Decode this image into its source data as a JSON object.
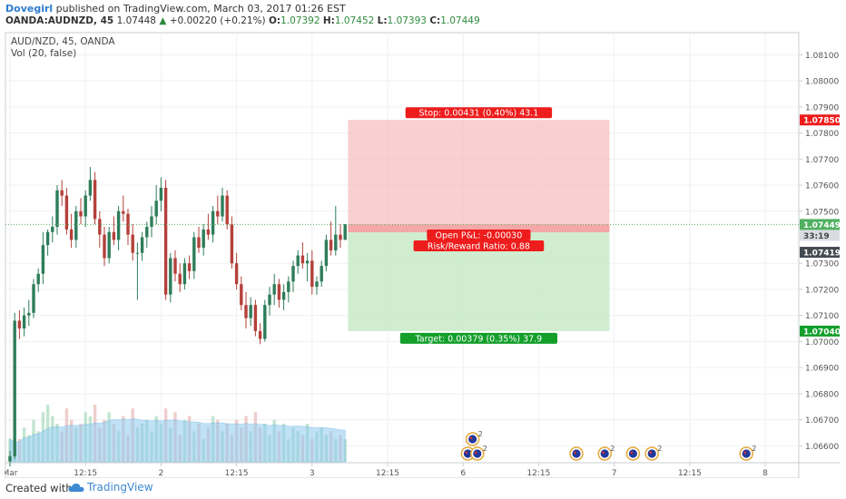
{
  "header": {
    "author": "Dovegirl",
    "published_text": "published on TradingView.com, March 03, 2017 01:26 EST",
    "symbol": "OANDA:AUDNZD, 45",
    "last": "1.07448",
    "change": "+0.00220 (+0.21%)",
    "ohlc": [
      {
        "key": "O:",
        "value": "1.07392"
      },
      {
        "key": "H:",
        "value": "1.07452"
      },
      {
        "key": "L:",
        "value": "1.07393"
      },
      {
        "key": "C:",
        "value": "1.07449"
      }
    ]
  },
  "legend": {
    "title": "AUD/NZD, 45, OANDA",
    "indicator": "Vol (20, false)"
  },
  "footer": {
    "created_with": "Created with",
    "brand": "TradingView"
  },
  "colors": {
    "up": "#2e7d5a",
    "down": "#b5403a",
    "volume_ma": "#8fcbf0",
    "stop_zone": "#f8bfbf",
    "target_zone": "#c8eac8",
    "stop_label": "#ee1c1c",
    "target_label": "#139f2a",
    "last_price_label": "#4fb060"
  },
  "chart_data": {
    "type": "candlestick",
    "ylim": [
      1.06535,
      1.08185
    ],
    "y_ticks": [
      "1.08100",
      "1.08000",
      "1.07900",
      "1.07800",
      "1.07700",
      "1.07600",
      "1.07500",
      "1.07300",
      "1.07200",
      "1.07100",
      "1.07000",
      "1.06900",
      "1.06800",
      "1.06700",
      "1.06600"
    ],
    "y_tick_values": [
      1.081,
      1.08,
      1.079,
      1.078,
      1.077,
      1.076,
      1.075,
      1.073,
      1.072,
      1.071,
      1.07,
      1.069,
      1.068,
      1.067,
      1.066
    ],
    "x_ticks": [
      "Mar",
      "12:15",
      "2",
      "12:15",
      "3",
      "12:15",
      "6",
      "12:15",
      "7",
      "12:15",
      "8"
    ],
    "x_tick_bars": [
      0,
      16,
      32,
      48,
      64,
      80,
      96,
      112,
      128,
      144,
      160
    ],
    "ohlc": [
      [
        1.0654,
        1.0658,
        1.0652,
        1.0656
      ],
      [
        1.0656,
        1.0711,
        1.0655,
        1.0708
      ],
      [
        1.0708,
        1.0712,
        1.0701,
        1.0705
      ],
      [
        1.0705,
        1.0713,
        1.0702,
        1.071
      ],
      [
        1.071,
        1.0716,
        1.0706,
        1.0711
      ],
      [
        1.0711,
        1.0724,
        1.0709,
        1.0722
      ],
      [
        1.0722,
        1.0728,
        1.0719,
        1.0726
      ],
      [
        1.0726,
        1.0742,
        1.0722,
        1.0737
      ],
      [
        1.0737,
        1.0743,
        1.0733,
        1.0742
      ],
      [
        1.0742,
        1.0748,
        1.0738,
        1.0744
      ],
      [
        1.0744,
        1.076,
        1.0741,
        1.0758
      ],
      [
        1.0758,
        1.0762,
        1.0752,
        1.0756
      ],
      [
        1.0756,
        1.0759,
        1.0741,
        1.0743
      ],
      [
        1.0743,
        1.0749,
        1.0736,
        1.0739
      ],
      [
        1.0739,
        1.0752,
        1.0736,
        1.075
      ],
      [
        1.075,
        1.0755,
        1.0745,
        1.0748
      ],
      [
        1.0748,
        1.0758,
        1.0744,
        1.0756
      ],
      [
        1.0756,
        1.0767,
        1.0754,
        1.0762
      ],
      [
        1.0762,
        1.0765,
        1.0745,
        1.0747
      ],
      [
        1.0747,
        1.075,
        1.0736,
        1.0741
      ],
      [
        1.0741,
        1.0744,
        1.0729,
        1.0732
      ],
      [
        1.0732,
        1.0744,
        1.073,
        1.0742
      ],
      [
        1.0742,
        1.0748,
        1.0737,
        1.0739
      ],
      [
        1.0739,
        1.0752,
        1.0735,
        1.075
      ],
      [
        1.075,
        1.0756,
        1.0746,
        1.0749
      ],
      [
        1.0749,
        1.0751,
        1.0737,
        1.0741
      ],
      [
        1.0741,
        1.0745,
        1.0731,
        1.0734
      ],
      [
        1.0734,
        1.0738,
        1.0716,
        1.0734
      ],
      [
        1.0734,
        1.0742,
        1.0731,
        1.074
      ],
      [
        1.074,
        1.0746,
        1.0736,
        1.0744
      ],
      [
        1.0744,
        1.0752,
        1.074,
        1.0748
      ],
      [
        1.0748,
        1.076,
        1.0745,
        1.0754
      ],
      [
        1.0754,
        1.0763,
        1.075,
        1.0759
      ],
      [
        1.0759,
        1.0762,
        1.0716,
        1.0718
      ],
      [
        1.0718,
        1.0734,
        1.0715,
        1.0732
      ],
      [
        1.0732,
        1.0735,
        1.0723,
        1.0726
      ],
      [
        1.0726,
        1.073,
        1.0719,
        1.0722
      ],
      [
        1.0722,
        1.0732,
        1.072,
        1.073
      ],
      [
        1.073,
        1.0733,
        1.0724,
        1.0727
      ],
      [
        1.0727,
        1.0742,
        1.0724,
        1.074
      ],
      [
        1.074,
        1.0744,
        1.0734,
        1.0736
      ],
      [
        1.0736,
        1.0745,
        1.0733,
        1.0743
      ],
      [
        1.0743,
        1.0749,
        1.0739,
        1.0741
      ],
      [
        1.0741,
        1.0752,
        1.0738,
        1.075
      ],
      [
        1.075,
        1.0756,
        1.0745,
        1.0748
      ],
      [
        1.0748,
        1.0759,
        1.0746,
        1.0756
      ],
      [
        1.0756,
        1.0758,
        1.0743,
        1.0745
      ],
      [
        1.0745,
        1.0748,
        1.0728,
        1.073
      ],
      [
        1.073,
        1.0734,
        1.072,
        1.0722
      ],
      [
        1.0722,
        1.0725,
        1.0712,
        1.0714
      ],
      [
        1.0714,
        1.0719,
        1.0705,
        1.0709
      ],
      [
        1.0709,
        1.0717,
        1.0706,
        1.0714
      ],
      [
        1.0714,
        1.0716,
        1.0702,
        1.0704
      ],
      [
        1.0704,
        1.0707,
        1.0699,
        1.0701
      ],
      [
        1.0701,
        1.0716,
        1.07,
        1.0714
      ],
      [
        1.0714,
        1.0721,
        1.071,
        1.0718
      ],
      [
        1.0718,
        1.0726,
        1.0714,
        1.0722
      ],
      [
        1.0722,
        1.0724,
        1.0713,
        1.0716
      ],
      [
        1.0716,
        1.0722,
        1.0712,
        1.0719
      ],
      [
        1.0719,
        1.0725,
        1.0715,
        1.0723
      ],
      [
        1.0723,
        1.0731,
        1.0719,
        1.0729
      ],
      [
        1.0729,
        1.0735,
        1.0726,
        1.0733
      ],
      [
        1.0733,
        1.0738,
        1.0728,
        1.073
      ],
      [
        1.073,
        1.0734,
        1.0723,
        1.0731
      ],
      [
        1.0731,
        1.0735,
        1.0718,
        1.0721
      ],
      [
        1.0721,
        1.0725,
        1.0718,
        1.0723
      ],
      [
        1.0723,
        1.0731,
        1.0721,
        1.0729
      ],
      [
        1.0729,
        1.0741,
        1.0727,
        1.0739
      ],
      [
        1.0739,
        1.0746,
        1.0733,
        1.0735
      ],
      [
        1.0735,
        1.0752,
        1.0733,
        1.0741
      ],
      [
        1.0741,
        1.0745,
        1.0736,
        1.0739
      ],
      [
        1.0739,
        1.0745,
        1.0739,
        1.0745
      ]
    ],
    "volume": [
      6,
      4,
      6,
      9,
      7,
      11,
      8,
      13,
      15,
      12,
      10,
      8,
      14,
      11,
      9,
      10,
      13,
      12,
      15,
      9,
      11,
      13,
      10,
      8,
      12,
      7,
      14,
      9,
      10,
      11,
      8,
      12,
      10,
      14,
      9,
      13,
      7,
      11,
      12,
      8,
      10,
      6,
      9,
      12,
      11,
      8,
      10,
      7,
      11,
      9,
      12,
      8,
      13,
      9,
      10,
      7,
      11,
      8,
      10,
      6,
      9,
      8,
      7,
      10,
      6,
      8,
      9,
      7,
      8,
      6,
      7,
      6
    ],
    "position": {
      "start_bar": 72,
      "end_bar": 127,
      "entry": 1.07419,
      "stop": 1.0785,
      "target": 1.0704,
      "current": 1.07449
    },
    "labels": {
      "stop": "Stop: 0.00431 (0.40%) 43.1",
      "target": "Target: 0.00379 (0.35%) 37.9",
      "pnl": "Open P&L: -0.00030",
      "rr": "Risk/Reward Ratio: 0.88"
    },
    "price_labels": {
      "stop": "1.07850",
      "current": "1.07449",
      "countdown": "33:19",
      "entry": "1.07419",
      "target": "1.07040"
    },
    "events": [
      {
        "bar": 98,
        "count": "2",
        "stacked": true
      },
      {
        "bar": 97,
        "count": "",
        "stacked": false
      },
      {
        "bar": 99,
        "count": "2",
        "stacked": false
      },
      {
        "bar": 120,
        "count": "",
        "stacked": false
      },
      {
        "bar": 126,
        "count": "2",
        "stacked": false
      },
      {
        "bar": 132,
        "count": "",
        "stacked": false
      },
      {
        "bar": 136,
        "count": "2",
        "stacked": false
      },
      {
        "bar": 156,
        "count": "2",
        "stacked": false
      }
    ]
  }
}
